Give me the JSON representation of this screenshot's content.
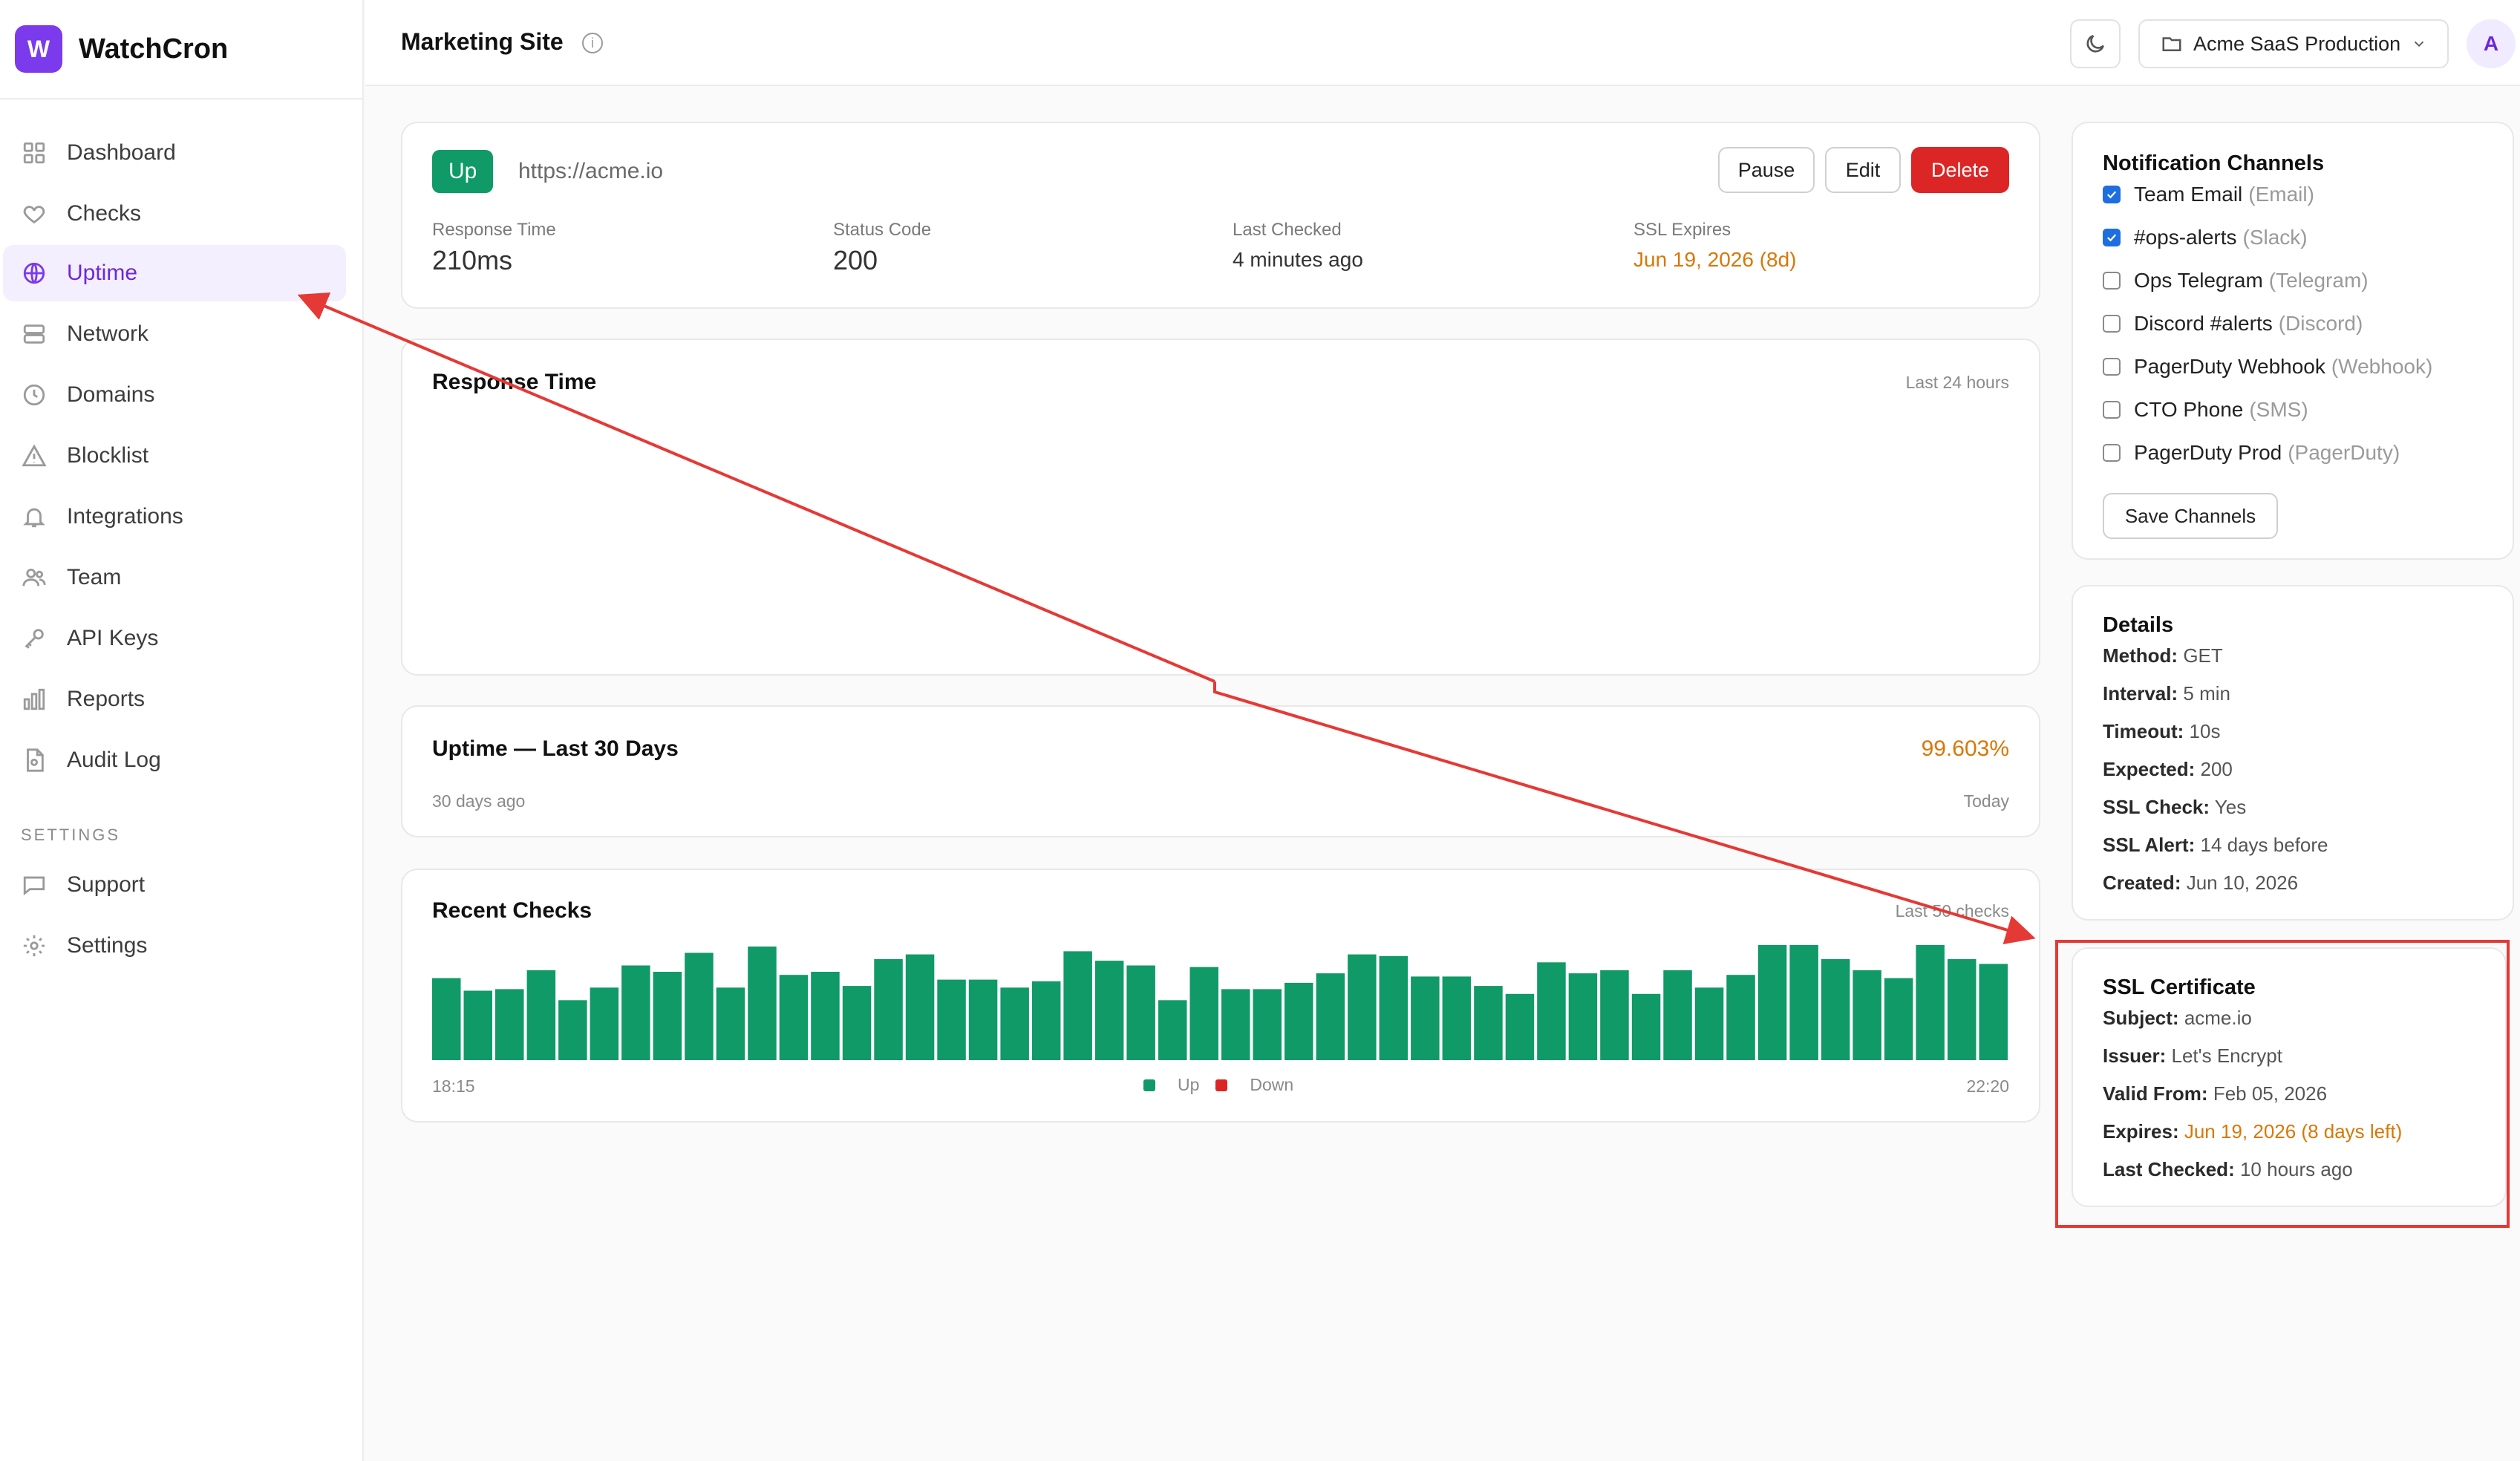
{
  "app": {
    "logo_letter": "W",
    "name": "WatchCron"
  },
  "sidebar": {
    "items": [
      {
        "label": "Dashboard",
        "icon": "grid-icon"
      },
      {
        "label": "Checks",
        "icon": "heart-icon"
      },
      {
        "label": "Uptime",
        "icon": "globe-icon",
        "active": true
      },
      {
        "label": "Network",
        "icon": "server-icon"
      },
      {
        "label": "Domains",
        "icon": "clock-icon"
      },
      {
        "label": "Blocklist",
        "icon": "warning-icon"
      },
      {
        "label": "Integrations",
        "icon": "bell-icon"
      },
      {
        "label": "Team",
        "icon": "users-icon"
      },
      {
        "label": "API Keys",
        "icon": "key-icon"
      },
      {
        "label": "Reports",
        "icon": "bar-chart-icon"
      },
      {
        "label": "Audit Log",
        "icon": "file-icon"
      }
    ],
    "settings_label": "SETTINGS",
    "settings_items": [
      {
        "label": "Support",
        "icon": "chat-icon"
      },
      {
        "label": "Settings",
        "icon": "gear-icon"
      }
    ]
  },
  "header": {
    "title": "Marketing Site",
    "info_glyph": "i",
    "project": "Acme SaaS Production",
    "avatar_letter": "A"
  },
  "summary": {
    "status": "Up",
    "url": "https://acme.io",
    "pause_label": "Pause",
    "edit_label": "Edit",
    "delete_label": "Delete",
    "metrics": [
      {
        "label": "Response Time",
        "value": "210ms"
      },
      {
        "label": "Status Code",
        "value": "200"
      },
      {
        "label": "Last Checked",
        "value": "4 minutes ago"
      },
      {
        "label": "SSL Expires",
        "value": "Jun 19, 2026 (8d)"
      }
    ]
  },
  "response_time": {
    "title": "Response Time",
    "range": "Last 24 hours"
  },
  "uptime": {
    "title": "Uptime — Last 30 Days",
    "percent": "99.603%",
    "start_label": "30 days ago",
    "end_label": "Today"
  },
  "recent_checks": {
    "title": "Recent Checks",
    "range": "Last 50 checks",
    "start_time": "18:15",
    "end_time": "22:20",
    "legend_up": "Up",
    "legend_down": "Down"
  },
  "chart_data": {
    "type": "bar",
    "values": [
      52,
      44,
      45,
      57,
      38,
      46,
      60,
      56,
      68,
      46,
      72,
      54,
      56,
      47,
      64,
      67,
      51,
      51,
      46,
      50,
      69,
      63,
      60,
      38,
      59,
      45,
      45,
      49,
      55,
      67,
      66,
      53,
      53,
      47,
      42,
      62,
      55,
      57,
      42,
      57,
      46,
      54,
      73,
      73,
      64,
      57,
      52,
      73,
      64,
      61
    ],
    "ylim": [
      0,
      80
    ],
    "colors": {
      "up": "#0f9a68",
      "down": "#dc2626"
    }
  },
  "notifications": {
    "title": "Notification Channels",
    "channels": [
      {
        "name": "Team Email",
        "type": "(Email)",
        "checked": true
      },
      {
        "name": "#ops-alerts",
        "type": "(Slack)",
        "checked": true
      },
      {
        "name": "Ops Telegram",
        "type": "(Telegram)",
        "checked": false
      },
      {
        "name": "Discord #alerts",
        "type": "(Discord)",
        "checked": false
      },
      {
        "name": "PagerDuty Webhook",
        "type": "(Webhook)",
        "checked": false
      },
      {
        "name": "CTO Phone",
        "type": "(SMS)",
        "checked": false
      },
      {
        "name": "PagerDuty Prod",
        "type": "(PagerDuty)",
        "checked": false
      }
    ],
    "save_label": "Save Channels"
  },
  "details": {
    "title": "Details",
    "rows": [
      {
        "k": "Method:",
        "v": "GET"
      },
      {
        "k": "Interval:",
        "v": "5 min"
      },
      {
        "k": "Timeout:",
        "v": "10s"
      },
      {
        "k": "Expected:",
        "v": "200"
      },
      {
        "k": "SSL Check:",
        "v": "Yes"
      },
      {
        "k": "SSL Alert:",
        "v": "14 days before"
      },
      {
        "k": "Created:",
        "v": "Jun 10, 2026"
      }
    ]
  },
  "ssl": {
    "title": "SSL Certificate",
    "rows": [
      {
        "k": "Subject:",
        "v": "acme.io"
      },
      {
        "k": "Issuer:",
        "v": "Let's Encrypt"
      },
      {
        "k": "Valid From:",
        "v": "Feb 05, 2026"
      },
      {
        "k": "Expires:",
        "v": "Jun 19, 2026 (8 days left)",
        "warn": true
      },
      {
        "k": "Last Checked:",
        "v": "10 hours ago"
      }
    ]
  },
  "colors": {
    "accent": "#7c3aed",
    "up": "#0f9a68",
    "danger": "#dc2626",
    "warning": "#d97706",
    "annotation": "#e53935"
  }
}
